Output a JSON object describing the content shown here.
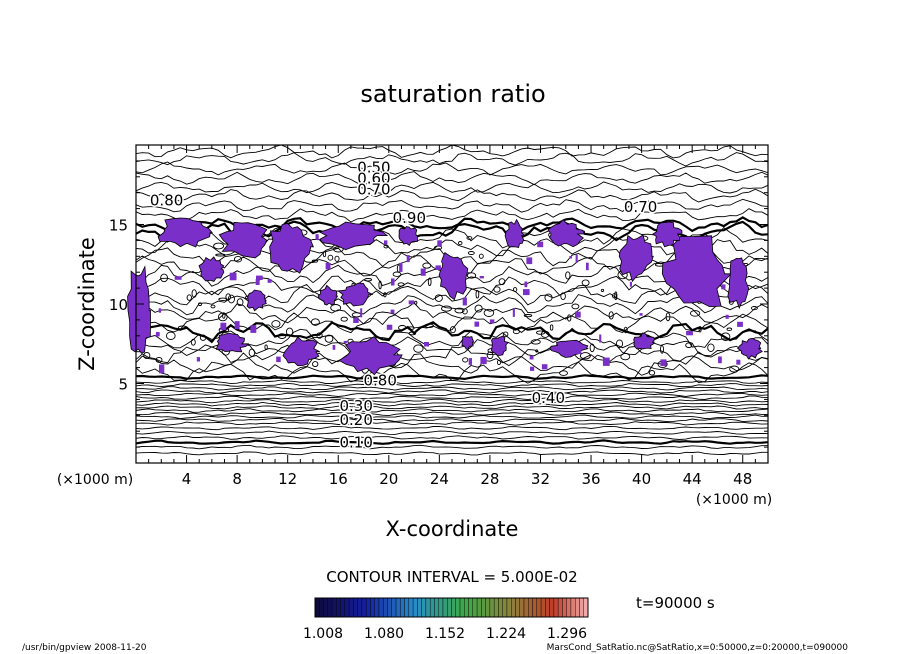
{
  "chart_data": {
    "type": "contour",
    "title": "saturation ratio",
    "xlabel": "X-coordinate",
    "ylabel": "Z-coordinate",
    "x_unit": "(×1000 m)",
    "z_unit": "(×1000 m)",
    "xlim": [
      0,
      50
    ],
    "ylim": [
      0,
      20
    ],
    "x_ticks": [
      4,
      8,
      12,
      16,
      20,
      24,
      28,
      32,
      36,
      40,
      44,
      48
    ],
    "y_ticks": [
      5,
      10,
      15
    ],
    "grid": false,
    "contour_interval_label": "CONTOUR INTERVAL = 5.000E-02",
    "contour_labels": [
      {
        "text": "0.50",
        "x": 17.5,
        "z": 18.6
      },
      {
        "text": "0.60",
        "x": 17.5,
        "z": 17.9
      },
      {
        "text": "0.70",
        "x": 17.5,
        "z": 17.2
      },
      {
        "text": "0.80",
        "x": 1.1,
        "z": 16.5
      },
      {
        "text": "0.90",
        "x": 20.3,
        "z": 15.4
      },
      {
        "text": "0.70",
        "x": 38.6,
        "z": 16.1
      },
      {
        "text": "0.80",
        "x": 18.0,
        "z": 5.2
      },
      {
        "text": "0.40",
        "x": 31.3,
        "z": 4.1
      },
      {
        "text": "0.30",
        "x": 16.1,
        "z": 3.6
      },
      {
        "text": "0.20",
        "x": 16.1,
        "z": 2.7
      },
      {
        "text": "0.10",
        "x": 16.1,
        "z": 1.3
      }
    ],
    "colorbar": {
      "tick_labels": [
        "1.008",
        "1.080",
        "1.152",
        "1.224",
        "1.296"
      ],
      "min": 1.008,
      "max": 1.296
    },
    "time_label": "t=90000 s",
    "shade_color": "#7a2fc8"
  },
  "footer": {
    "left": "/usr/bin/gpview  2008-11-20",
    "right": "MarsCond_SatRatio.nc@SatRatio,x=0:50000,z=0:20000,t=090000"
  }
}
